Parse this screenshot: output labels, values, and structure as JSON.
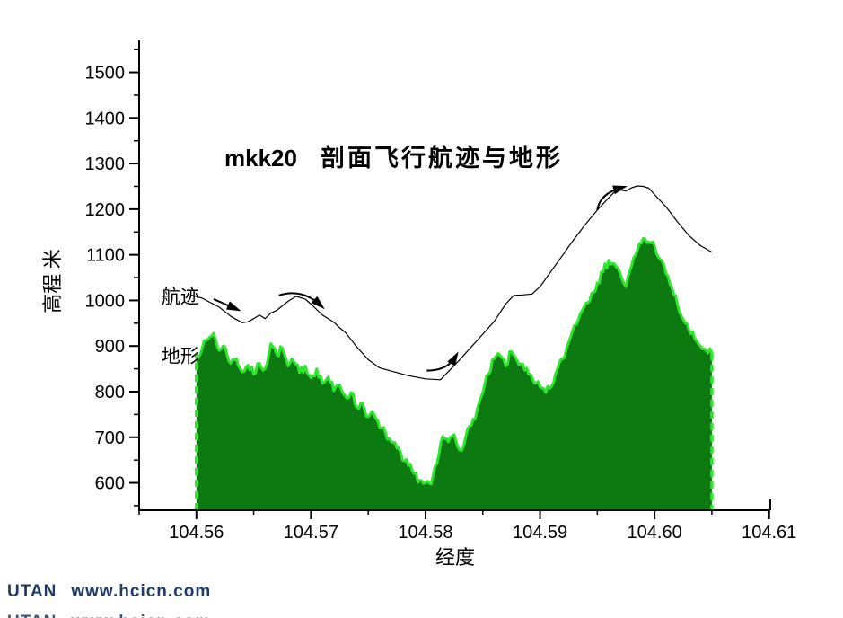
{
  "title": {
    "prefix": "mkk20",
    "text": "剖面飞行航迹与地形"
  },
  "watermark": {
    "brand": "UTAN",
    "url": "www.hcicn.com",
    "color": "#1f3c69"
  },
  "chart_data": {
    "type": "area",
    "title": "mkk20 剖面飞行航迹与地形",
    "xlabel": "经度",
    "ylabel": "高程 米",
    "xlim": [
      104.555,
      104.6101
    ],
    "ylim": [
      540,
      1570
    ],
    "x_ticks": [
      104.56,
      104.57,
      104.58,
      104.59,
      104.6,
      104.61
    ],
    "x_tick_labels": [
      "104.56",
      "104.57",
      "104.58",
      "104.59",
      "104.60",
      "104.61"
    ],
    "x_minor_ticks": [
      104.555,
      104.565,
      104.575,
      104.585,
      104.595,
      104.605
    ],
    "y_ticks": [
      600,
      700,
      800,
      900,
      1000,
      1100,
      1200,
      1300,
      1400,
      1500
    ],
    "y_tick_labels": [
      "600",
      "700",
      "800",
      "900",
      "1000",
      "1100",
      "1200",
      "1300",
      "1400",
      "1500"
    ],
    "y_minor_ticks": [
      550,
      650,
      750,
      850,
      950,
      1050,
      1150,
      1250,
      1350,
      1450,
      1550
    ],
    "grid": false,
    "legend_position": "inside-left",
    "colors": {
      "terrain_fill": "#0d7a11",
      "terrain_edge": "#2ee62e",
      "track_line": "#000000",
      "axis": "#000000"
    },
    "series": [
      {
        "name": "地形",
        "type": "area",
        "x_start": 104.56,
        "x_step": 0.0005,
        "elevations": [
          880,
          895,
          915,
          928,
          890,
          898,
          862,
          872,
          843,
          858,
          838,
          862,
          850,
          905,
          882,
          895,
          856,
          866,
          842,
          856,
          830,
          850,
          818,
          832,
          802,
          815,
          790,
          798,
          766,
          775,
          745,
          750,
          720,
          710,
          690,
          676,
          650,
          638,
          620,
          606,
          600,
          597,
          642,
          702,
          690,
          706,
          672,
          700,
          726,
          760,
          798,
          838,
          872,
          880,
          856,
          888,
          868,
          860,
          838,
          818,
          810,
          798,
          812,
          848,
          872,
          908,
          945,
          970,
          994,
          1016,
          1038,
          1062,
          1088,
          1080,
          1058,
          1030,
          1076,
          1110,
          1136,
          1128,
          1120,
          1090,
          1058,
          1028,
          990,
          958,
          935,
          916,
          900,
          890,
          885
        ]
      },
      {
        "name": "航迹",
        "type": "line",
        "points": [
          [
            104.5595,
            1012
          ],
          [
            104.5605,
            1005
          ],
          [
            104.561,
            998
          ],
          [
            104.562,
            985
          ],
          [
            104.563,
            965
          ],
          [
            104.564,
            951
          ],
          [
            104.5645,
            953
          ],
          [
            104.565,
            960
          ],
          [
            104.5655,
            968
          ],
          [
            104.566,
            960
          ],
          [
            104.5665,
            972
          ],
          [
            104.567,
            978
          ],
          [
            104.568,
            998
          ],
          [
            104.5687,
            1009
          ],
          [
            104.5695,
            1003
          ],
          [
            104.57,
            992
          ],
          [
            104.571,
            968
          ],
          [
            104.572,
            952
          ],
          [
            104.5725,
            940
          ],
          [
            104.573,
            930
          ],
          [
            104.574,
            898
          ],
          [
            104.575,
            870
          ],
          [
            104.576,
            852
          ],
          [
            104.577,
            845
          ],
          [
            104.5785,
            835
          ],
          [
            104.58,
            828
          ],
          [
            104.5813,
            826
          ],
          [
            104.583,
            870
          ],
          [
            104.584,
            898
          ],
          [
            104.585,
            926
          ],
          [
            104.586,
            954
          ],
          [
            104.587,
            992
          ],
          [
            104.5877,
            1011
          ],
          [
            104.5885,
            1012
          ],
          [
            104.5893,
            1014
          ],
          [
            104.59,
            1030
          ],
          [
            104.591,
            1065
          ],
          [
            104.592,
            1100
          ],
          [
            104.5925,
            1118
          ],
          [
            104.593,
            1135
          ],
          [
            104.594,
            1168
          ],
          [
            104.595,
            1198
          ],
          [
            104.596,
            1225
          ],
          [
            104.5965,
            1238
          ],
          [
            104.597,
            1242
          ],
          [
            104.5975,
            1240
          ],
          [
            104.598,
            1247
          ],
          [
            104.5985,
            1251
          ],
          [
            104.599,
            1250
          ],
          [
            104.5995,
            1246
          ],
          [
            104.6,
            1232
          ],
          [
            104.601,
            1205
          ],
          [
            104.602,
            1172
          ],
          [
            104.603,
            1142
          ],
          [
            104.604,
            1120
          ],
          [
            104.605,
            1106
          ]
        ]
      }
    ],
    "series_labels": [
      {
        "text": "航迹",
        "x": 104.5586,
        "y": 1008
      },
      {
        "text": "地形",
        "x": 104.5586,
        "y": 878
      }
    ],
    "arrows": [
      {
        "shape": "line",
        "from": [
          104.5615,
          1003
        ],
        "to": [
          104.5634,
          982
        ]
      },
      {
        "shape": "arc",
        "from": [
          104.5672,
          1011
        ],
        "ctrl": [
          104.5692,
          1027
        ],
        "to": [
          104.5708,
          990
        ]
      },
      {
        "shape": "arc",
        "from": [
          104.5801,
          846
        ],
        "ctrl": [
          104.5819,
          846
        ],
        "to": [
          104.5826,
          876
        ]
      },
      {
        "shape": "arc",
        "from": [
          104.595,
          1198
        ],
        "ctrl": [
          104.5952,
          1234
        ],
        "to": [
          104.5971,
          1247
        ]
      }
    ]
  }
}
